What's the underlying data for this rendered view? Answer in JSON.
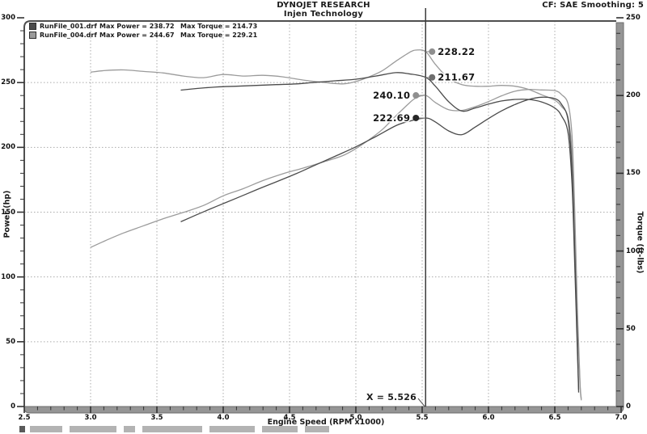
{
  "header": {
    "brand": "DYNOJET RESEARCH",
    "subtitle": "Injen Technology",
    "correction": "CF: SAE  Smoothing: 5"
  },
  "legend": [
    {
      "file": "RunFile_001.drf",
      "max_power": "Max Power = 238.72",
      "max_torque": "Max Torque = 214.73",
      "color": "#4b4b4b"
    },
    {
      "file": "RunFile_004.drf",
      "max_power": "Max Power = 244.67",
      "max_torque": "Max Torque = 229.21",
      "color": "#9b9b9b"
    }
  ],
  "chart_data": {
    "type": "line",
    "title": "DYNOJET RESEARCH — Injen Technology",
    "xlabel": "Engine Speed (RPM x1000)",
    "ylabel_left": "Power (hp)",
    "ylabel_right": "Torque (ft-lbs)",
    "xlim": [
      2.5,
      7.0
    ],
    "ylim_left": [
      0,
      300
    ],
    "ylim_right": [
      0,
      250
    ],
    "x_major_ticks": [
      2.5,
      3.0,
      3.5,
      4.0,
      4.5,
      5.0,
      5.5,
      6.0,
      6.5,
      7.0
    ],
    "left_major_ticks": [
      0,
      50,
      100,
      150,
      200,
      250,
      300
    ],
    "right_major_ticks": [
      0,
      50,
      100,
      150,
      200,
      250
    ],
    "grid": "dotted",
    "cursor": {
      "rpm": 5.526,
      "label": "X = 5.526"
    },
    "cursor_values": [
      {
        "text": "228.22",
        "value": 228.22,
        "axis": "right",
        "side": "right",
        "dot_color": "#8f8f8f",
        "run": "RunFile_004.drf torque"
      },
      {
        "text": "211.67",
        "value": 211.67,
        "axis": "right",
        "side": "right",
        "dot_color": "#6e6e6e",
        "run": "RunFile_001.drf torque"
      },
      {
        "text": "240.10",
        "value": 240.1,
        "axis": "left",
        "side": "left",
        "dot_color": "#8f8f8f",
        "run": "RunFile_004.drf power"
      },
      {
        "text": "222.69",
        "value": 222.69,
        "axis": "left",
        "side": "left",
        "dot_color": "#262626",
        "run": "RunFile_001.drf power"
      }
    ],
    "series": [
      {
        "name": "runfile-004-power",
        "axis": "left",
        "color": "#9b9b9b",
        "points": [
          [
            3.0,
            122.8
          ],
          [
            3.1,
            127.5
          ],
          [
            3.25,
            134.0
          ],
          [
            3.4,
            139.5
          ],
          [
            3.55,
            145.0
          ],
          [
            3.7,
            149.8
          ],
          [
            3.85,
            155.1
          ],
          [
            4.0,
            162.6
          ],
          [
            4.15,
            168.1
          ],
          [
            4.3,
            174.4
          ],
          [
            4.45,
            179.6
          ],
          [
            4.6,
            183.9
          ],
          [
            4.75,
            188.6
          ],
          [
            4.9,
            193.6
          ],
          [
            5.0,
            199.0
          ],
          [
            5.1,
            205.9
          ],
          [
            5.2,
            213.8
          ],
          [
            5.3,
            224.1
          ],
          [
            5.4,
            233.9
          ],
          [
            5.45,
            238.0
          ],
          [
            5.526,
            240.1
          ],
          [
            5.6,
            234.6
          ],
          [
            5.7,
            229.0
          ],
          [
            5.8,
            228.5
          ],
          [
            5.9,
            231.4
          ],
          [
            6.0,
            235.3
          ],
          [
            6.1,
            239.8
          ],
          [
            6.2,
            243.3
          ],
          [
            6.3,
            244.67
          ],
          [
            6.4,
            244.3
          ],
          [
            6.5,
            243.8
          ],
          [
            6.55,
            240.8
          ],
          [
            6.6,
            233.6
          ],
          [
            6.63,
            209.0
          ],
          [
            6.65,
            152.0
          ],
          [
            6.67,
            76.0
          ],
          [
            6.69,
            19.0
          ],
          [
            6.7,
            6.0
          ]
        ]
      },
      {
        "name": "runfile-004-torque",
        "axis": "right",
        "color": "#9b9b9b",
        "points": [
          [
            3.0,
            215.0
          ],
          [
            3.1,
            216.0
          ],
          [
            3.25,
            216.5
          ],
          [
            3.4,
            215.5
          ],
          [
            3.55,
            214.5
          ],
          [
            3.7,
            212.5
          ],
          [
            3.85,
            211.5
          ],
          [
            4.0,
            213.5
          ],
          [
            4.15,
            212.5
          ],
          [
            4.3,
            213.0
          ],
          [
            4.45,
            212.0
          ],
          [
            4.6,
            210.0
          ],
          [
            4.75,
            208.5
          ],
          [
            4.9,
            207.5
          ],
          [
            5.0,
            209.0
          ],
          [
            5.1,
            212.0
          ],
          [
            5.2,
            216.0
          ],
          [
            5.3,
            222.0
          ],
          [
            5.4,
            227.5
          ],
          [
            5.45,
            229.2
          ],
          [
            5.526,
            228.2
          ],
          [
            5.6,
            220.0
          ],
          [
            5.7,
            211.0
          ],
          [
            5.8,
            207.0
          ],
          [
            5.9,
            206.0
          ],
          [
            6.0,
            206.0
          ],
          [
            6.1,
            206.5
          ],
          [
            6.2,
            206.0
          ],
          [
            6.3,
            204.0
          ],
          [
            6.4,
            200.5
          ],
          [
            6.5,
            197.0
          ],
          [
            6.55,
            193.0
          ],
          [
            6.6,
            186.0
          ],
          [
            6.63,
            163.0
          ],
          [
            6.65,
            118.0
          ],
          [
            6.67,
            58.0
          ],
          [
            6.69,
            14.0
          ],
          [
            6.7,
            4.0
          ]
        ]
      },
      {
        "name": "runfile-001-power",
        "axis": "left",
        "color": "#4b4b4b",
        "points": [
          [
            3.68,
            142.6
          ],
          [
            3.8,
            148.0
          ],
          [
            3.95,
            154.5
          ],
          [
            4.1,
            160.8
          ],
          [
            4.25,
            167.2
          ],
          [
            4.4,
            173.4
          ],
          [
            4.55,
            179.7
          ],
          [
            4.7,
            186.6
          ],
          [
            4.85,
            193.4
          ],
          [
            5.0,
            200.4
          ],
          [
            5.15,
            208.3
          ],
          [
            5.3,
            216.7
          ],
          [
            5.4,
            220.1
          ],
          [
            5.526,
            222.69
          ],
          [
            5.6,
            219.6
          ],
          [
            5.7,
            212.7
          ],
          [
            5.8,
            209.8
          ],
          [
            5.9,
            215.7
          ],
          [
            6.0,
            222.2
          ],
          [
            6.1,
            228.2
          ],
          [
            6.2,
            233.1
          ],
          [
            6.3,
            236.9
          ],
          [
            6.4,
            238.72
          ],
          [
            6.5,
            237.6
          ],
          [
            6.55,
            233.3
          ],
          [
            6.6,
            221.1
          ],
          [
            6.63,
            183.0
          ],
          [
            6.65,
            120.0
          ],
          [
            6.67,
            51.0
          ],
          [
            6.68,
            13.0
          ]
        ]
      },
      {
        "name": "runfile-001-torque",
        "axis": "right",
        "color": "#4b4b4b",
        "points": [
          [
            3.68,
            203.5
          ],
          [
            3.8,
            204.5
          ],
          [
            3.95,
            205.5
          ],
          [
            4.1,
            206.0
          ],
          [
            4.25,
            206.5
          ],
          [
            4.4,
            207.0
          ],
          [
            4.55,
            207.5
          ],
          [
            4.7,
            208.5
          ],
          [
            4.85,
            209.5
          ],
          [
            5.0,
            210.5
          ],
          [
            5.15,
            212.5
          ],
          [
            5.3,
            214.73
          ],
          [
            5.4,
            214.0
          ],
          [
            5.526,
            211.67
          ],
          [
            5.6,
            206.0
          ],
          [
            5.7,
            196.0
          ],
          [
            5.8,
            190.0
          ],
          [
            5.9,
            192.0
          ],
          [
            6.0,
            194.5
          ],
          [
            6.1,
            196.5
          ],
          [
            6.2,
            197.5
          ],
          [
            6.3,
            197.5
          ],
          [
            6.4,
            195.9
          ],
          [
            6.5,
            192.0
          ],
          [
            6.55,
            187.0
          ],
          [
            6.6,
            176.0
          ],
          [
            6.63,
            143.0
          ],
          [
            6.65,
            92.0
          ],
          [
            6.67,
            36.0
          ],
          [
            6.68,
            9.0
          ]
        ]
      }
    ]
  }
}
